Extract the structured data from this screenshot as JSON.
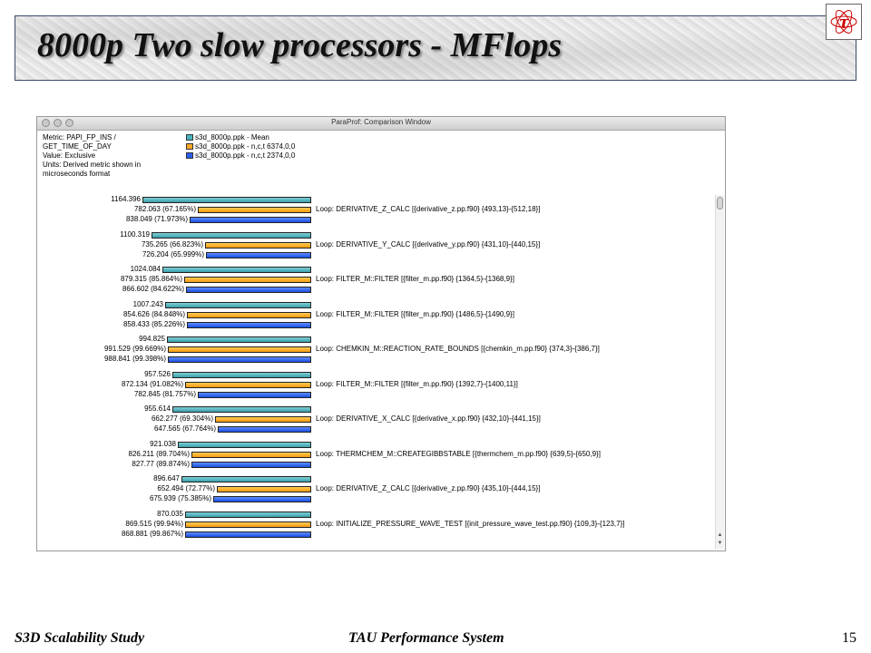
{
  "slide": {
    "title": "8000p Two slow processors - MFlops",
    "logo_letter": "τ",
    "footer_left": "S3D Scalability Study",
    "footer_center": "TAU Performance System",
    "page_number": "15"
  },
  "window": {
    "title": "ParaProf: Comparison Window",
    "info_lines": [
      "Metric: PAPI_FP_INS /",
      "GET_TIME_OF_DAY",
      "Value: Exclusive",
      "Units: Derived metric shown in",
      "microseconds format"
    ],
    "legend": [
      {
        "label": "s3d_8000p.ppk - Mean",
        "color": "#4bb3bd"
      },
      {
        "label": "s3d_8000p.ppk - n,c,t 6374,0,0",
        "color": "#f7a823"
      },
      {
        "label": "s3d_8000p.ppk - n,c,t 2374,0,0",
        "color": "#2a5ff0"
      }
    ]
  },
  "chart_data": {
    "type": "bar",
    "orientation": "horizontal",
    "series": [
      {
        "name": "s3d_8000p.ppk - Mean"
      },
      {
        "name": "s3d_8000p.ppk - n,c,t 6374,0,0"
      },
      {
        "name": "s3d_8000p.ppk - n,c,t 2374,0,0"
      }
    ],
    "groups": [
      {
        "label": "Loop: DERIVATIVE_Z_CALC [{derivative_z.pp.f90} {493,13}-{512,18}]",
        "values": [
          1164.396,
          782.063,
          838.049
        ],
        "texts": [
          "1164.396",
          "782.063 (67.165%)",
          "838.049 (71.973%)"
        ]
      },
      {
        "label": "Loop: DERIVATIVE_Y_CALC [{derivative_y.pp.f90} {431,10}-{440,15}]",
        "values": [
          1100.319,
          735.265,
          726.204
        ],
        "texts": [
          "1100.319",
          "735.265 (66.823%)",
          "726.204 (65.999%)"
        ]
      },
      {
        "label": "Loop: FILTER_M::FILTER [{filter_m.pp.f90} {1364,5}-{1368,9}]",
        "values": [
          1024.084,
          879.315,
          866.602
        ],
        "texts": [
          "1024.084",
          "879.315 (85.864%)",
          "866.602 (84.622%)"
        ]
      },
      {
        "label": "Loop: FILTER_M::FILTER [{filter_m.pp.f90} {1486,5}-{1490,9}]",
        "values": [
          1007.243,
          854.626,
          858.433
        ],
        "texts": [
          "1007.243",
          "854.626 (84.848%)",
          "858.433 (85.226%)"
        ]
      },
      {
        "label": "Loop: CHEMKIN_M::REACTION_RATE_BOUNDS [{chemkin_m.pp.f90} {374,3}-{386,7}]",
        "values": [
          994.825,
          991.529,
          988.841
        ],
        "texts": [
          "994.825",
          "991.529 (99.669%)",
          "988.841 (99.398%)"
        ]
      },
      {
        "label": "Loop: FILTER_M::FILTER [{filter_m.pp.f90} {1392,7}-{1400,11}]",
        "values": [
          957.526,
          872.134,
          782.845
        ],
        "texts": [
          "957.526",
          "872.134 (91.082%)",
          "782.845 (81.757%)"
        ]
      },
      {
        "label": "Loop: DERIVATIVE_X_CALC [{derivative_x.pp.f90} {432,10}-{441,15}]",
        "values": [
          955.614,
          662.277,
          647.565
        ],
        "texts": [
          "955.614",
          "662.277 (69.304%)",
          "647.565 (67.764%)"
        ]
      },
      {
        "label": "Loop: THERMCHEM_M::CREATEGIBBSTABLE [{thermchem_m.pp.f90} {639,5}-{650,9}]",
        "values": [
          921.038,
          826.211,
          827.77
        ],
        "texts": [
          "921.038",
          "826.211 (89.704%)",
          "827.77 (89.874%)"
        ]
      },
      {
        "label": "Loop: DERIVATIVE_Z_CALC [{derivative_z.pp.f90} {435,10}-{444,15}]",
        "values": [
          896.647,
          652.494,
          675.939
        ],
        "texts": [
          "896.647",
          "652.494 (72.77%)",
          "675.939 (75.385%)"
        ]
      },
      {
        "label": "Loop: INITIALIZE_PRESSURE_WAVE_TEST [{init_pressure_wave_test.pp.f90} {109,3}-{123,7}]",
        "values": [
          870.035,
          869.515,
          868.881
        ],
        "texts": [
          "870.035",
          "869.515 (99.94%)",
          "868.881 (99.867%)"
        ]
      }
    ]
  }
}
